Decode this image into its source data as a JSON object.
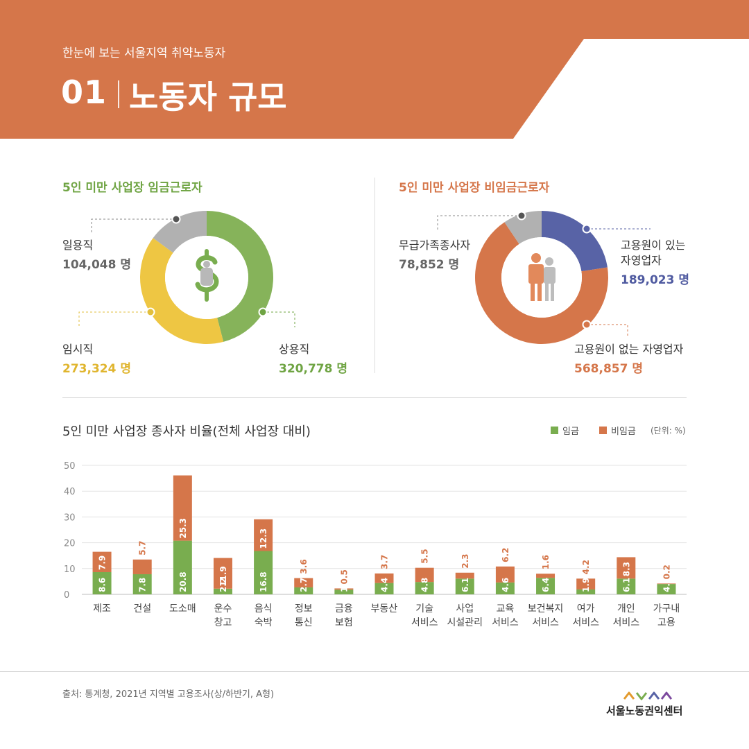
{
  "header": {
    "subtitle": "한눈에 보는 서울지역 취약노동자",
    "number": "01",
    "title": "노동자 규모"
  },
  "wage_donut": {
    "title": "5인 미만 사업장 임금근로자",
    "segments": [
      {
        "label": "상용직",
        "value": "320,778 명",
        "count": 320778,
        "color": "#86b35a"
      },
      {
        "label": "임시직",
        "value": "273,324 명",
        "count": 273324,
        "color": "#eec643"
      },
      {
        "label": "일용직",
        "value": "104,048 명",
        "count": 104048,
        "color": "#b1b1b1"
      }
    ],
    "center_icon": "dollar-icon"
  },
  "nonwage_donut": {
    "title": "5인 미만 사업장 비임금근로자",
    "segments": [
      {
        "label_line1": "고용원이 있는",
        "label_line2": "자영업자",
        "value": "189,023 명",
        "count": 189023,
        "color": "#5863a6"
      },
      {
        "label_line1": "고용원이 없는 자영업자",
        "label_line2": "",
        "value": "568,857 명",
        "count": 568857,
        "color": "#d5764a"
      },
      {
        "label_line1": "무급가족종사자",
        "label_line2": "",
        "value": "78,852 명",
        "count": 78852,
        "color": "#b1b1b1"
      }
    ],
    "center_icon": "people-icon"
  },
  "bar_section": {
    "title": "5인 미만 사업장 종사자 비율(전체 사업장 대비)",
    "legend": [
      {
        "label": "임금",
        "color": "#79ad4f"
      },
      {
        "label": "비임금",
        "color": "#d5764a"
      }
    ],
    "unit": "(단위: %)"
  },
  "chart_data": {
    "type": "bar",
    "stacked": true,
    "categories": [
      [
        "제조"
      ],
      [
        "건설"
      ],
      [
        "도소매"
      ],
      [
        "운수",
        "창고"
      ],
      [
        "음식",
        "숙박"
      ],
      [
        "정보",
        "통신"
      ],
      [
        "금융",
        "보험"
      ],
      [
        "부동산"
      ],
      [
        "기술",
        "서비스"
      ],
      [
        "사업",
        "시설관리"
      ],
      [
        "교육",
        "서비스"
      ],
      [
        "보건복지",
        "서비스"
      ],
      [
        "여가",
        "서비스"
      ],
      [
        "개인",
        "서비스"
      ],
      [
        "가구내",
        "고용"
      ]
    ],
    "series": [
      {
        "name": "임금",
        "color": "#79ad4f",
        "values": [
          8.6,
          7.8,
          20.8,
          2.2,
          16.8,
          2.7,
          1.8,
          4.4,
          4.8,
          6.1,
          4.6,
          6.4,
          1.9,
          6.1,
          4.0
        ],
        "labels": [
          "8.6",
          "7.8",
          "20.8",
          "2.2",
          "16.8",
          "2.7",
          "1.8",
          "4.4",
          "4.8",
          "6.1",
          "4.6",
          "6.4",
          "1.9",
          "6.1",
          "4.0"
        ]
      },
      {
        "name": "비임금",
        "color": "#d5764a",
        "values": [
          7.9,
          5.7,
          25.3,
          11.9,
          12.3,
          3.6,
          0.5,
          3.7,
          5.5,
          2.3,
          6.2,
          1.6,
          4.2,
          8.3,
          0.2
        ],
        "labels": [
          "7.9",
          "5.7",
          "25.3",
          "11.9",
          "12.3",
          "3.6",
          "0.5",
          "3.7",
          "5.5",
          "2.3",
          "6.2",
          "1.6",
          "4.2",
          "8.3",
          "0.2"
        ]
      }
    ],
    "ylim": [
      0,
      50
    ],
    "yticks": [
      "0",
      "10",
      "20",
      "30",
      "40",
      "50"
    ],
    "grid": true,
    "legend_position": "top-right"
  },
  "footer": {
    "source": "출처: 통계청, 2021년 지역별 고용조사(상/하반기, A형)",
    "logo": "서울노동권익센터"
  }
}
